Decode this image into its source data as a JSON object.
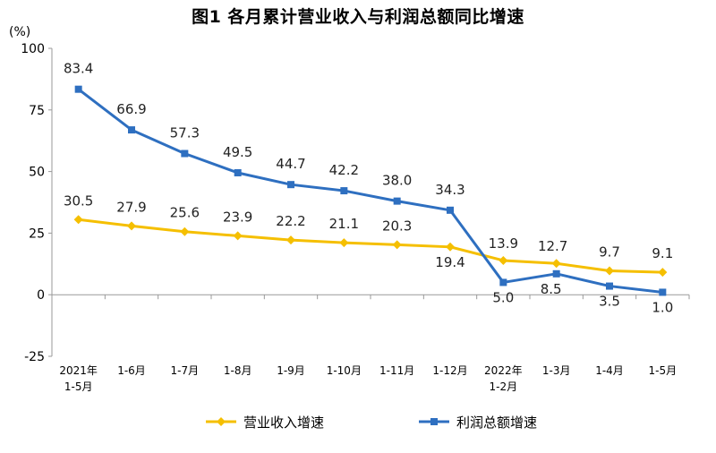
{
  "chart_data": {
    "type": "line",
    "title": "图1  各月累计营业收入与利润总额同比增速",
    "ylabel": "(%)",
    "ylim": [
      -25,
      100
    ],
    "yticks": [
      -25,
      0,
      25,
      50,
      75,
      100
    ],
    "categories": [
      [
        "2021年",
        "1-5月"
      ],
      [
        "1-6月"
      ],
      [
        "1-7月"
      ],
      [
        "1-8月"
      ],
      [
        "1-9月"
      ],
      [
        "1-10月"
      ],
      [
        "1-11月"
      ],
      [
        "1-12月"
      ],
      [
        "2022年",
        "1-2月"
      ],
      [
        "1-3月"
      ],
      [
        "1-4月"
      ],
      [
        "1-5月"
      ]
    ],
    "series": [
      {
        "name": "营业收入增速",
        "color": "#F5BF00",
        "marker": "diamond",
        "values": [
          30.5,
          27.9,
          25.6,
          23.9,
          22.2,
          21.1,
          20.3,
          19.4,
          13.9,
          12.7,
          9.7,
          9.1
        ],
        "labels": [
          "30.5",
          "27.9",
          "25.6",
          "23.9",
          "22.2",
          "21.1",
          "20.3",
          "19.4",
          "13.9",
          "12.7",
          "9.7",
          "9.1"
        ]
      },
      {
        "name": "利润总额增速",
        "color": "#2E6FC0",
        "marker": "square",
        "values": [
          83.4,
          66.9,
          57.3,
          49.5,
          44.7,
          42.2,
          38.0,
          34.3,
          5.0,
          8.5,
          3.5,
          1.0
        ],
        "labels": [
          "83.4",
          "66.9",
          "57.3",
          "49.5",
          "44.7",
          "42.2",
          "38.0",
          "34.3",
          "5.0",
          "8.5",
          "3.5",
          "1.0"
        ]
      }
    ],
    "legend_position": "bottom",
    "grid": false
  }
}
